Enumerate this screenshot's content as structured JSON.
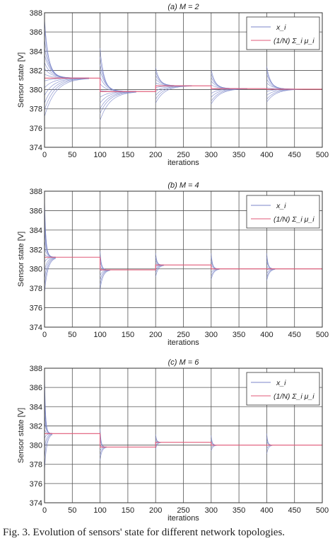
{
  "caption": "Fig. 3. Evolution of sensors' state for different network topologies.",
  "colors": {
    "axis": "#333333",
    "grid": "#555555",
    "trajectory": "#7b86c9",
    "average": "#e05a78"
  },
  "chart_data": [
    {
      "type": "line",
      "title": "(a)  M = 2",
      "xlabel": "iterations",
      "ylabel": "Sensor state [V]",
      "xlim": [
        0,
        500
      ],
      "ylim": [
        374,
        388
      ],
      "xticks": [
        0,
        50,
        100,
        150,
        200,
        250,
        300,
        350,
        400,
        450,
        500
      ],
      "yticks": [
        374,
        376,
        378,
        380,
        382,
        384,
        386,
        388
      ],
      "grid": true,
      "legend_position": "top-right",
      "legend": [
        "x_i",
        "(1/N) Σ_i μ_i"
      ],
      "decay": 12,
      "series": [
        {
          "name": "(1/N) Σ_i μ_i",
          "kind": "average",
          "x": [
            0,
            100,
            100,
            200,
            200,
            300,
            300,
            400,
            400,
            500
          ],
          "y": [
            381.2,
            381.2,
            379.8,
            379.8,
            380.4,
            380.4,
            380.1,
            380.1,
            380.05,
            380.05
          ]
        },
        {
          "name": "x_i",
          "kind": "trajectories",
          "segments": [
            {
              "x0": 0,
              "x1": 100,
              "settle": 80,
              "final": 381.2,
              "starts": [
                387.3,
                386.4,
                385.2,
                384.3,
                383.6,
                382.8,
                382.2,
                381.6,
                380.9,
                380.2,
                379.4,
                378.6,
                377.9,
                377.2
              ]
            },
            {
              "x0": 100,
              "x1": 200,
              "settle": 65,
              "final": 379.8,
              "starts": [
                384.3,
                383.4,
                382.6,
                382.0,
                381.3,
                380.6,
                379.9,
                379.2,
                378.6,
                378.0,
                377.5,
                376.8
              ]
            },
            {
              "x0": 200,
              "x1": 300,
              "settle": 65,
              "final": 380.4,
              "starts": [
                382.3,
                381.9,
                381.5,
                381.1,
                380.7,
                380.2,
                379.8,
                379.4,
                379.0,
                378.6
              ]
            },
            {
              "x0": 300,
              "x1": 400,
              "settle": 65,
              "final": 380.1,
              "starts": [
                382.1,
                381.7,
                381.3,
                380.9,
                380.5,
                380.0,
                379.6,
                379.2,
                378.8,
                378.5
              ]
            },
            {
              "x0": 400,
              "x1": 500,
              "settle": 65,
              "final": 380.05,
              "starts": [
                382.4,
                382.0,
                381.6,
                381.1,
                380.7,
                380.2,
                379.8,
                379.4,
                379.0,
                378.7
              ]
            }
          ]
        }
      ]
    },
    {
      "type": "line",
      "title": "(b)  M = 4",
      "xlabel": "iterations",
      "ylabel": "Sensor state [V]",
      "xlim": [
        0,
        500
      ],
      "ylim": [
        374,
        388
      ],
      "xticks": [
        0,
        50,
        100,
        150,
        200,
        250,
        300,
        350,
        400,
        450,
        500
      ],
      "yticks": [
        374,
        376,
        378,
        380,
        382,
        384,
        386,
        388
      ],
      "grid": true,
      "legend_position": "top-right",
      "legend": [
        "x_i",
        "(1/N) Σ_i μ_i"
      ],
      "decay": 4,
      "series": [
        {
          "name": "(1/N) Σ_i μ_i",
          "kind": "average",
          "x": [
            0,
            100,
            100,
            200,
            200,
            300,
            300,
            400,
            400,
            500
          ],
          "y": [
            381.2,
            381.2,
            379.9,
            379.9,
            380.4,
            380.4,
            380.0,
            380.0,
            380.0,
            380.0
          ]
        },
        {
          "name": "x_i",
          "kind": "trajectories",
          "segments": [
            {
              "x0": 0,
              "x1": 100,
              "settle": 20,
              "final": 381.2,
              "starts": [
                387.3,
                386.3,
                385.0,
                384.0,
                383.0,
                382.2,
                381.5,
                380.7,
                379.8,
                379.0,
                378.2,
                377.5
              ]
            },
            {
              "x0": 100,
              "x1": 200,
              "settle": 18,
              "final": 379.9,
              "starts": [
                381.8,
                381.3,
                380.8,
                380.3,
                379.8,
                379.3,
                378.8,
                378.3,
                377.8
              ]
            },
            {
              "x0": 200,
              "x1": 300,
              "settle": 15,
              "final": 380.4,
              "starts": [
                381.6,
                381.2,
                380.9,
                380.6,
                380.2,
                379.9,
                379.6,
                379.2
              ]
            },
            {
              "x0": 300,
              "x1": 400,
              "settle": 15,
              "final": 380.0,
              "starts": [
                381.6,
                381.2,
                380.8,
                380.4,
                380.0,
                379.6,
                379.2,
                378.9
              ]
            },
            {
              "x0": 400,
              "x1": 500,
              "settle": 15,
              "final": 380.0,
              "starts": [
                381.6,
                381.2,
                380.8,
                380.3,
                379.9,
                379.5,
                379.1,
                378.8
              ]
            }
          ]
        }
      ]
    },
    {
      "type": "line",
      "title": "(c)  M = 6",
      "xlabel": "iterations",
      "ylabel": "Sensor state [V]",
      "xlim": [
        0,
        500
      ],
      "ylim": [
        374,
        388
      ],
      "xticks": [
        0,
        50,
        100,
        150,
        200,
        250,
        300,
        350,
        400,
        450,
        500
      ],
      "yticks": [
        374,
        376,
        378,
        380,
        382,
        384,
        386,
        388
      ],
      "grid": true,
      "legend_position": "top-right",
      "legend": [
        "x_i",
        "(1/N) Σ_i μ_i"
      ],
      "decay": 3,
      "series": [
        {
          "name": "(1/N) Σ_i μ_i",
          "kind": "average",
          "x": [
            0,
            100,
            100,
            200,
            200,
            300,
            300,
            400,
            400,
            500
          ],
          "y": [
            381.2,
            381.2,
            379.8,
            379.8,
            380.3,
            380.3,
            380.0,
            380.0,
            380.0,
            380.0
          ]
        },
        {
          "name": "x_i",
          "kind": "trajectories",
          "segments": [
            {
              "x0": 0,
              "x1": 100,
              "settle": 14,
              "final": 381.2,
              "starts": [
                387.5,
                386.0,
                384.6,
                383.4,
                382.5,
                381.6,
                380.7,
                379.7,
                378.6,
                377.4
              ]
            },
            {
              "x0": 100,
              "x1": 200,
              "settle": 12,
              "final": 379.8,
              "starts": [
                381.7,
                381.2,
                380.6,
                380.0,
                379.4,
                378.9,
                378.4
              ]
            },
            {
              "x0": 200,
              "x1": 300,
              "settle": 10,
              "final": 380.3,
              "starts": [
                381.1,
                380.8,
                380.5,
                380.2,
                379.9,
                379.6
              ]
            },
            {
              "x0": 300,
              "x1": 400,
              "settle": 10,
              "final": 380.0,
              "starts": [
                381.0,
                380.6,
                380.3,
                380.0,
                379.7,
                379.4
              ]
            },
            {
              "x0": 400,
              "x1": 500,
              "settle": 10,
              "final": 380.0,
              "starts": [
                381.2,
                380.8,
                380.4,
                380.0,
                379.6,
                379.1
              ]
            }
          ]
        }
      ]
    }
  ]
}
